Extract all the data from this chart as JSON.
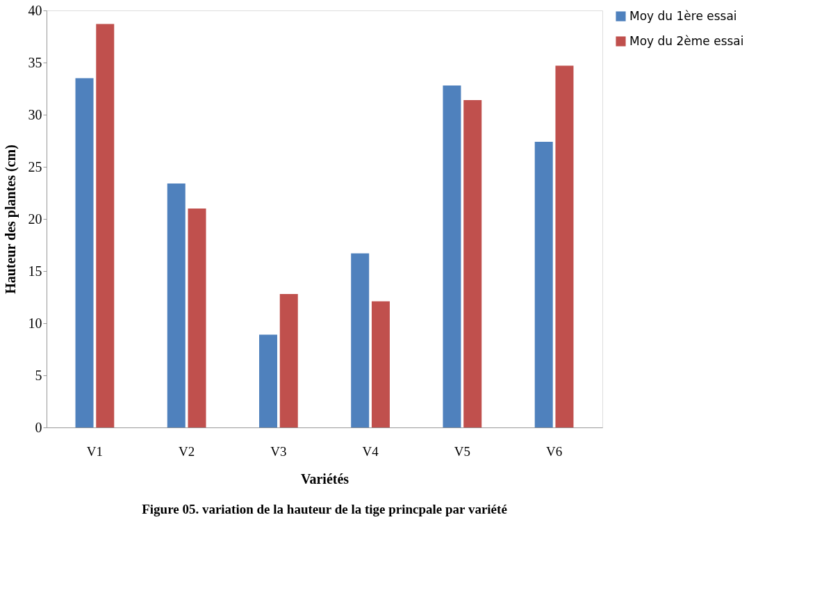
{
  "chart_data": {
    "type": "bar",
    "title": "Figure 05. variation de la hauteur de la tige princpale par variété",
    "xlabel": "Variétés",
    "ylabel": "Hauteur des plantes (cm)",
    "categories": [
      "V1",
      "V2",
      "V3",
      "V4",
      "V5",
      "V6"
    ],
    "series": [
      {
        "name": "Moy du 1ère essai",
        "color": "#4f81bd",
        "values": [
          33.5,
          23.4,
          8.9,
          16.7,
          32.8,
          27.4
        ]
      },
      {
        "name": "Moy du 2ème essai",
        "color": "#c0504d",
        "values": [
          38.7,
          21.0,
          12.8,
          12.1,
          31.4,
          34.7
        ]
      }
    ],
    "ylim": [
      0,
      40
    ],
    "yticks": [
      0,
      5,
      10,
      15,
      20,
      25,
      30,
      35,
      40
    ],
    "grid": false,
    "legend": "right"
  }
}
